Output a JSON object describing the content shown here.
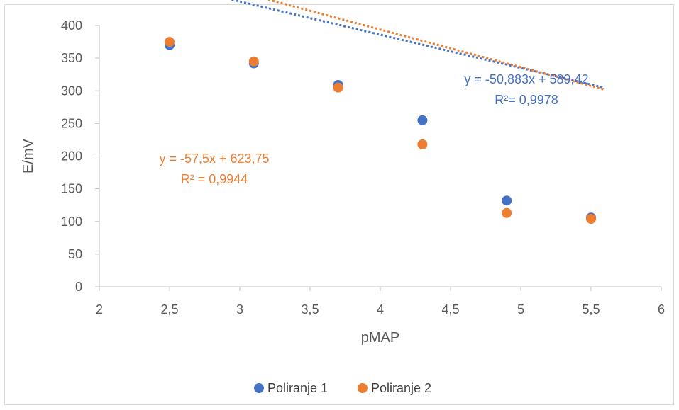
{
  "colors": {
    "series1": "#4472C4",
    "series2": "#ED7D31",
    "axis": "#bfbfbf",
    "text": "#595959"
  },
  "chart_data": {
    "type": "scatter",
    "xlabel": "pMAP",
    "ylabel": "E/mV",
    "xlim": [
      2,
      6
    ],
    "ylim": [
      0,
      400
    ],
    "x_ticks": [
      "2",
      "2,5",
      "3",
      "3,5",
      "4",
      "4,5",
      "5",
      "5,5",
      "6"
    ],
    "x_tick_values": [
      2,
      2.5,
      3,
      3.5,
      4,
      4.5,
      5,
      5.5,
      6
    ],
    "y_ticks": [
      "0",
      "50",
      "100",
      "150",
      "200",
      "250",
      "300",
      "350",
      "400"
    ],
    "y_tick_values": [
      0,
      50,
      100,
      150,
      200,
      250,
      300,
      350,
      400
    ],
    "grid": false,
    "legend_position": "bottom",
    "series": [
      {
        "name": "Poliranje 1",
        "color": "#4472C4",
        "x": [
          2.5,
          3.1,
          3.7,
          4.3,
          4.9,
          5.5
        ],
        "y": [
          370,
          342,
          309,
          255,
          132,
          106
        ],
        "trendline": {
          "slope": -50.883,
          "intercept": 589.42,
          "x_start": 2.5,
          "x_end": 5.6
        },
        "equation": "y = -50,883x + 589,42",
        "r2": "R²= 0,9978"
      },
      {
        "name": "Poliranje 2",
        "color": "#ED7D31",
        "x": [
          2.5,
          3.1,
          3.7,
          4.3,
          4.9,
          5.5
        ],
        "y": [
          375,
          345,
          305,
          218,
          113,
          104
        ],
        "trendline": {
          "slope": -57.5,
          "intercept": 623.75,
          "x_start": 2.5,
          "x_end": 5.6
        },
        "equation": "y = -57,5x + 623,75",
        "r2": "R² = 0,9944"
      }
    ]
  }
}
